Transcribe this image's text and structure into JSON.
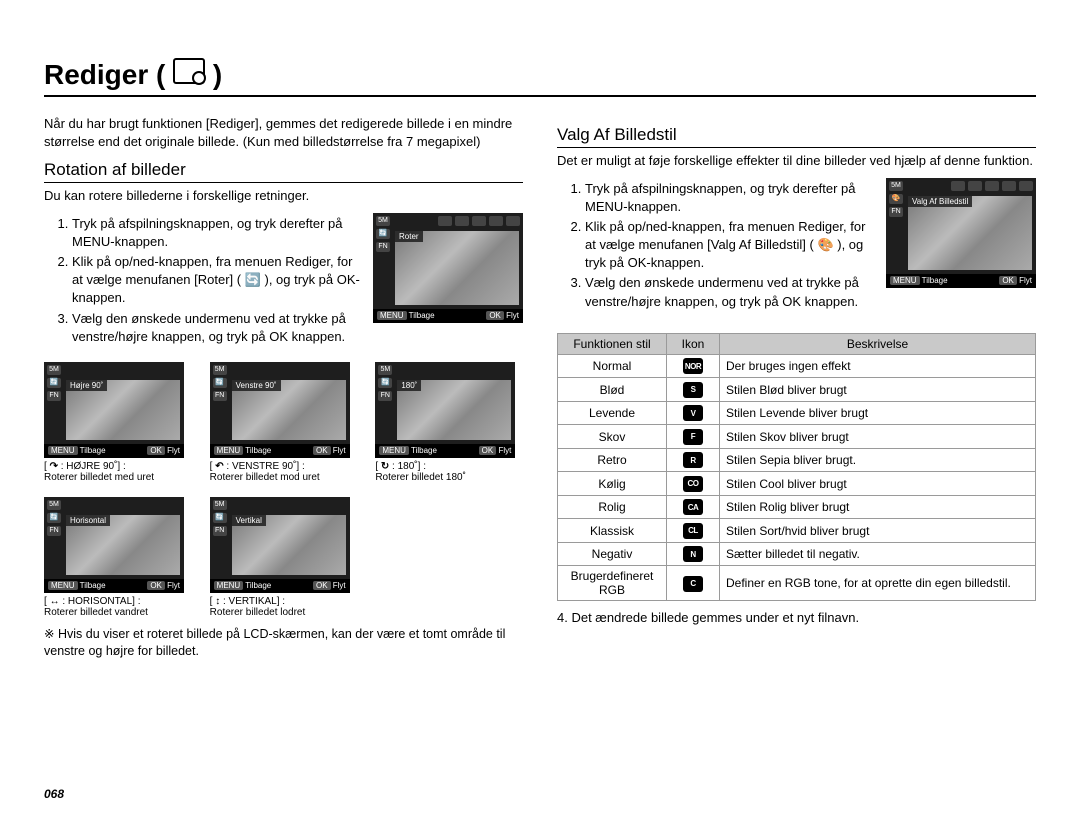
{
  "page_number": "068",
  "title": "Rediger",
  "left": {
    "intro": "Når du har brugt funktionen [Rediger], gemmes det redigerede billede i en mindre størrelse end det originale billede. (Kun med billedstørrelse fra 7 megapixel)",
    "heading": "Rotation af billeder",
    "sub": "Du kan rotere billederne i forskellige retninger.",
    "steps": [
      "Tryk på afspilningsknappen, og tryk derefter på MENU-knappen.",
      "Klik på op/ned-knappen, fra menuen Rediger, for at vælge menufanen [Roter] ( 🔄 ), og tryk på OK-knappen.",
      "Vælg den ønskede undermenu ved at trykke på venstre/højre knappen, og tryk på OK knappen."
    ],
    "screen": {
      "menu_label": "Roter",
      "bottom_left": "Tilbage",
      "bottom_right": "Flyt"
    },
    "rotations": [
      {
        "glyph": "↷",
        "label": "HØJRE 90˚",
        "desc": "Roterer billedet med uret",
        "menu": "Højre 90˚"
      },
      {
        "glyph": "↶",
        "label": "VENSTRE 90˚",
        "desc": "Roterer billedet mod uret",
        "menu": "Venstre 90˚"
      },
      {
        "glyph": "↻",
        "label": "180˚",
        "desc": "Roterer billedet 180˚",
        "menu": "180˚"
      },
      {
        "glyph": "↔",
        "label": "HORISONTAL",
        "desc": "Roterer billedet vandret",
        "menu": "Horisontal"
      },
      {
        "glyph": "↕",
        "label": "VERTIKAL",
        "desc": "Roterer billedet lodret",
        "menu": "Vertikal"
      }
    ],
    "note": "Hvis du viser et roteret billede på LCD-skærmen, kan der være et tomt område til venstre og højre for billedet."
  },
  "right": {
    "heading": "Valg Af Billedstil",
    "intro": "Det er muligt at føje forskellige effekter til dine billeder ved hjælp af denne funktion.",
    "steps": [
      "Tryk på afspilningsknappen, og tryk derefter på MENU-knappen.",
      "Klik på op/ned-knappen, fra menuen Rediger, for at vælge menufanen [Valg Af Billedstil] ( 🎨 ), og tryk på OK-knappen.",
      "Vælg den ønskede undermenu ved at trykke på venstre/højre knappen, og tryk på OK knappen."
    ],
    "screen": {
      "menu_label": "Valg Af Billedstil",
      "bottom_left": "Tilbage",
      "bottom_right": "Flyt"
    },
    "table": {
      "headers": [
        "Funktionen stil",
        "Ikon",
        "Beskrivelse"
      ],
      "rows": [
        {
          "name": "Normal",
          "icon": "NOR",
          "desc": "Der bruges ingen effekt"
        },
        {
          "name": "Blød",
          "icon": "S",
          "desc": "Stilen Blød bliver brugt"
        },
        {
          "name": "Levende",
          "icon": "V",
          "desc": "Stilen Levende bliver brugt"
        },
        {
          "name": "Skov",
          "icon": "F",
          "desc": "Stilen Skov bliver brugt"
        },
        {
          "name": "Retro",
          "icon": "R",
          "desc": "Stilen Sepia bliver brugt."
        },
        {
          "name": "Kølig",
          "icon": "CO",
          "desc": "Stilen Cool bliver brugt"
        },
        {
          "name": "Rolig",
          "icon": "CA",
          "desc": "Stilen Rolig bliver brugt"
        },
        {
          "name": "Klassisk",
          "icon": "CL",
          "desc": "Stilen Sort/hvid bliver brugt"
        },
        {
          "name": "Negativ",
          "icon": "N",
          "desc": "Sætter billedet til negativ."
        },
        {
          "name": "Brugerdefineret RGB",
          "icon": "C",
          "desc": "Definer en RGB tone, for at oprette din egen billedstil."
        }
      ]
    },
    "after": "4. Det ændrede billede gemmes under et nyt filnavn."
  }
}
